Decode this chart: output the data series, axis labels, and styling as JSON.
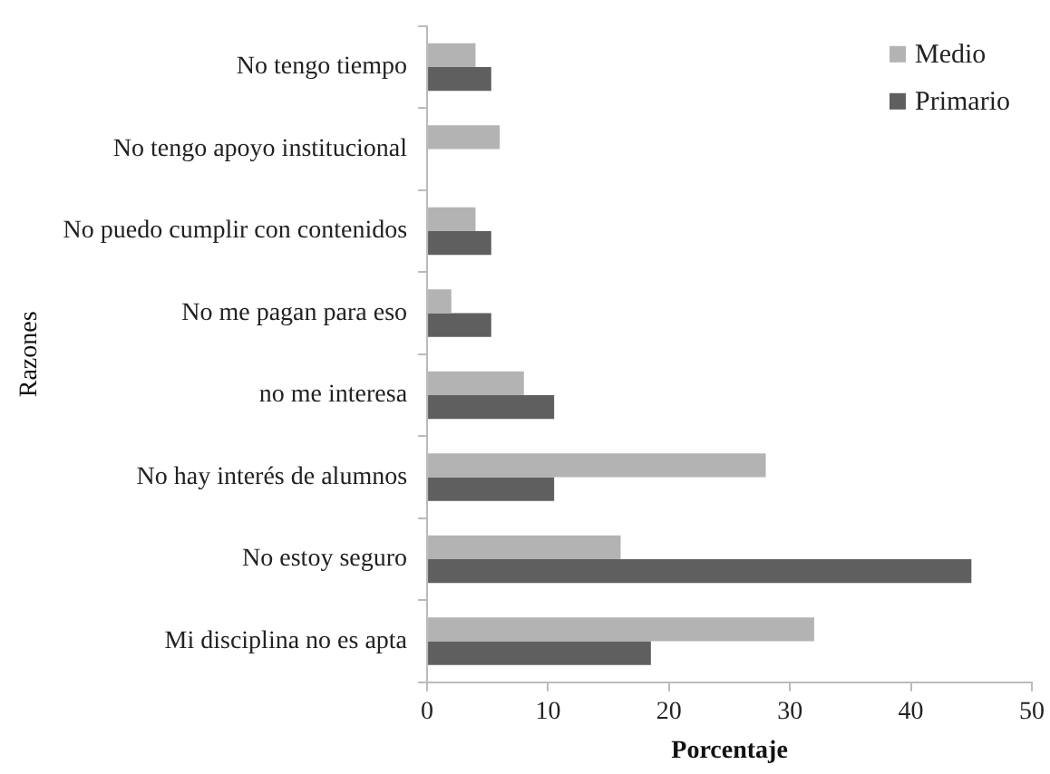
{
  "chart_data": {
    "type": "bar",
    "orientation": "horizontal",
    "xlabel": "Porcentaje",
    "ylabel": "Razones",
    "categories": [
      "No tengo tiempo",
      "No tengo apoyo institucional",
      "No puedo cumplir con contenidos",
      "No me pagan para eso",
      "no me interesa",
      "No hay interés de alumnos",
      "No estoy seguro",
      "Mi disciplina no es apta"
    ],
    "series": [
      {
        "name": "Medio",
        "color": "#b3b3b3",
        "values": [
          4,
          6,
          4,
          2,
          8,
          28,
          16,
          32
        ]
      },
      {
        "name": "Primario",
        "color": "#5f5f5f",
        "values": [
          5.3,
          null,
          5.3,
          5.3,
          10.5,
          10.5,
          45,
          18.5
        ]
      }
    ],
    "xlim": [
      0,
      50
    ],
    "xticks": [
      0,
      10,
      20,
      30,
      40,
      50
    ],
    "grid": false,
    "legend": "top right"
  }
}
